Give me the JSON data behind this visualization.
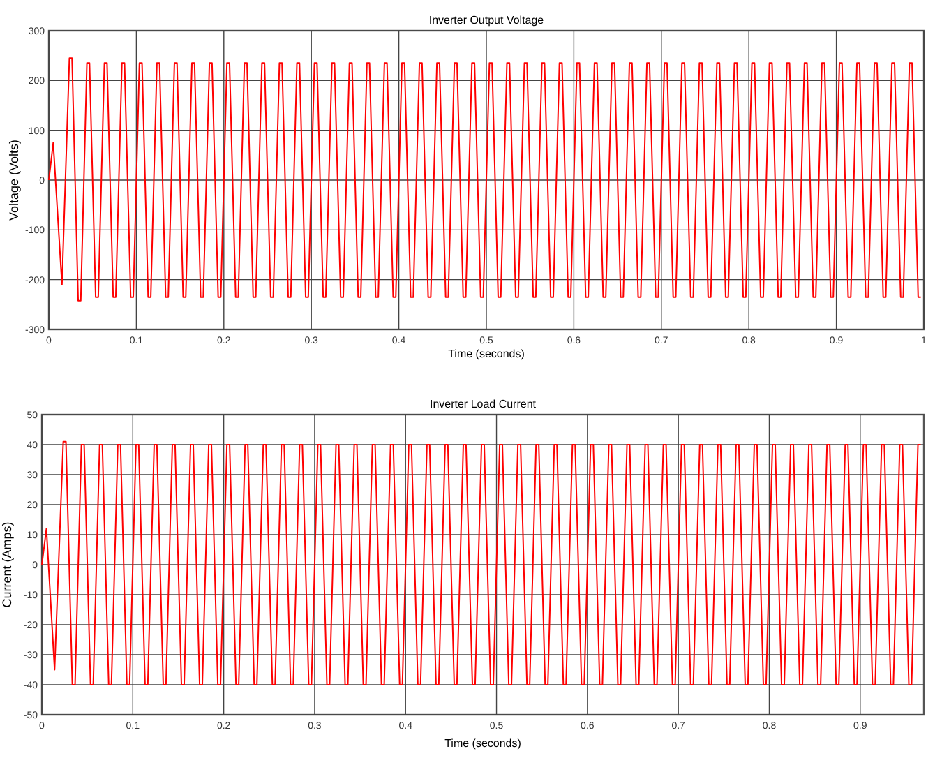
{
  "chart_data": [
    {
      "type": "line",
      "title": "Inverter Output Voltage",
      "xlabel": "Time (seconds)",
      "ylabel": "Voltage (Volts)",
      "xlim": [
        0,
        1
      ],
      "ylim": [
        -300,
        300
      ],
      "xticks": [
        0,
        0.1,
        0.2,
        0.3,
        0.4,
        0.5,
        0.6,
        0.7,
        0.8,
        0.9,
        1
      ],
      "yticks": [
        -300,
        -200,
        -100,
        0,
        100,
        200,
        300
      ],
      "grid": true,
      "x": [
        0,
        0.005,
        0.015,
        0.0235,
        0.0265,
        0.0335,
        0.0365,
        0.0435,
        0.0465,
        0.0535,
        0.0565,
        0.0635,
        0.0665,
        0.0735,
        0.0765,
        0.0835,
        0.0865,
        0.0935,
        0.0965,
        0.1035,
        0.1065,
        0.1135,
        0.1165,
        0.1235,
        0.1265,
        0.1335,
        0.1365,
        0.1435,
        0.1465,
        0.1535,
        0.1565,
        0.1635,
        0.1665,
        0.1735,
        0.1765,
        0.1835,
        0.1865,
        0.1935,
        0.1965,
        0.2035,
        0.2065,
        0.2135,
        0.2165,
        0.2235,
        0.2265,
        0.2335,
        0.2365,
        0.2435,
        0.2465,
        0.2535,
        0.2565,
        0.2635,
        0.2665,
        0.2735,
        0.2765,
        0.2835,
        0.2865,
        0.2935,
        0.2965,
        0.3035,
        0.3065,
        0.3135,
        0.3165,
        0.3235,
        0.3265,
        0.3335,
        0.3365,
        0.3435,
        0.3465,
        0.3535,
        0.3565,
        0.3635,
        0.3665,
        0.3735,
        0.3765,
        0.3835,
        0.3865,
        0.3935,
        0.3965,
        0.4035,
        0.4065,
        0.4135,
        0.4165,
        0.4235,
        0.4265,
        0.4335,
        0.4365,
        0.4435,
        0.4465,
        0.4535,
        0.4565,
        0.4635,
        0.4665,
        0.4735,
        0.4765,
        0.4835,
        0.4865,
        0.4935,
        0.4965,
        0.5035,
        0.5065,
        0.5135,
        0.5165,
        0.5235,
        0.5265,
        0.5335,
        0.5365,
        0.5435,
        0.5465,
        0.5535,
        0.5565,
        0.5635,
        0.5665,
        0.5735,
        0.5765,
        0.5835,
        0.5865,
        0.5935,
        0.5965,
        0.6035,
        0.6065,
        0.6135,
        0.6165,
        0.6235,
        0.6265,
        0.6335,
        0.6365,
        0.6435,
        0.6465,
        0.6535,
        0.6565,
        0.6635,
        0.6665,
        0.6735,
        0.6765,
        0.6835,
        0.6865,
        0.6935,
        0.6965,
        0.7035,
        0.7065,
        0.7135,
        0.7165,
        0.7235,
        0.7265,
        0.7335,
        0.7365,
        0.7435,
        0.7465,
        0.7535,
        0.7565,
        0.7635,
        0.7665,
        0.7735,
        0.7765,
        0.7835,
        0.7865,
        0.7935,
        0.7965,
        0.8035,
        0.8065,
        0.8135,
        0.8165,
        0.8235,
        0.8265,
        0.8335,
        0.8365,
        0.8435,
        0.8465,
        0.8535,
        0.8565,
        0.8635,
        0.8665,
        0.8735,
        0.8765,
        0.8835,
        0.8865,
        0.8935,
        0.8965,
        0.9035,
        0.9065,
        0.9135,
        0.9165,
        0.9235,
        0.9265,
        0.9335,
        0.9365,
        0.9435,
        0.9465,
        0.9535,
        0.9565,
        0.9635,
        0.9665,
        0.9735,
        0.9765,
        0.9835,
        0.9865,
        0.9935,
        0.9965
      ],
      "series": [
        {
          "color": "#ff0000",
          "values": [
            0,
            75,
            -210,
            245,
            245,
            -242,
            -242,
            235,
            235,
            -235,
            -235,
            235,
            235,
            -235,
            -235,
            235,
            235,
            -235,
            -235,
            235,
            235,
            -235,
            -235,
            235,
            235,
            -235,
            -235,
            235,
            235,
            -235,
            -235,
            235,
            235,
            -235,
            -235,
            235,
            235,
            -235,
            -235,
            235,
            235,
            -235,
            -235,
            235,
            235,
            -235,
            -235,
            235,
            235,
            -235,
            -235,
            235,
            235,
            -235,
            -235,
            235,
            235,
            -235,
            -235,
            235,
            235,
            -235,
            -235,
            235,
            235,
            -235,
            -235,
            235,
            235,
            -235,
            -235,
            235,
            235,
            -235,
            -235,
            235,
            235,
            -235,
            -235,
            235,
            235,
            -235,
            -235,
            235,
            235,
            -235,
            -235,
            235,
            235,
            -235,
            -235,
            235,
            235,
            -235,
            -235,
            235,
            235,
            -235,
            -235,
            235,
            235,
            -235,
            -235,
            235,
            235,
            -235,
            -235,
            235,
            235,
            -235,
            -235,
            235,
            235,
            -235,
            -235,
            235,
            235,
            -235,
            -235,
            235,
            235,
            -235,
            -235,
            235,
            235,
            -235,
            -235,
            235,
            235,
            -235,
            -235,
            235,
            235,
            -235,
            -235,
            235,
            235,
            -235,
            -235,
            235,
            235,
            -235,
            -235,
            235,
            235,
            -235,
            -235,
            235,
            235,
            -235,
            -235,
            235,
            235,
            -235,
            -235,
            235,
            235,
            -235,
            -235,
            235,
            235,
            -235,
            -235,
            235,
            235,
            -235,
            -235,
            235,
            235,
            -235,
            -235,
            235,
            235,
            -235,
            -235,
            235,
            235,
            -235,
            -235,
            235,
            235,
            -235,
            -235,
            235,
            235,
            -235,
            -235,
            235,
            235,
            -235,
            -235,
            235,
            235,
            -235,
            -235,
            235,
            235,
            -235,
            -235
          ]
        }
      ]
    },
    {
      "type": "line",
      "title": "Inverter Load Current",
      "xlabel": "Time (seconds)",
      "ylabel": "Current (Amps)",
      "xlim": [
        0,
        0.97
      ],
      "ylim": [
        -50,
        50
      ],
      "xticks": [
        0,
        0.1,
        0.2,
        0.3,
        0.4,
        0.5,
        0.6,
        0.7,
        0.8,
        0.9
      ],
      "yticks": [
        -50,
        -40,
        -30,
        -20,
        -10,
        0,
        10,
        20,
        30,
        40,
        50
      ],
      "grid": true,
      "x": [
        0,
        0.005,
        0.014,
        0.0235,
        0.0265,
        0.0335,
        0.0365,
        0.0435,
        0.0465,
        0.0535,
        0.0565,
        0.0635,
        0.0665,
        0.0735,
        0.0765,
        0.0835,
        0.0865,
        0.0935,
        0.0965,
        0.1035,
        0.1065,
        0.1135,
        0.1165,
        0.1235,
        0.1265,
        0.1335,
        0.1365,
        0.1435,
        0.1465,
        0.1535,
        0.1565,
        0.1635,
        0.1665,
        0.1735,
        0.1765,
        0.1835,
        0.1865,
        0.1935,
        0.1965,
        0.2035,
        0.2065,
        0.2135,
        0.2165,
        0.2235,
        0.2265,
        0.2335,
        0.2365,
        0.2435,
        0.2465,
        0.2535,
        0.2565,
        0.2635,
        0.2665,
        0.2735,
        0.2765,
        0.2835,
        0.2865,
        0.2935,
        0.2965,
        0.3035,
        0.3065,
        0.3135,
        0.3165,
        0.3235,
        0.3265,
        0.3335,
        0.3365,
        0.3435,
        0.3465,
        0.3535,
        0.3565,
        0.3635,
        0.3665,
        0.3735,
        0.3765,
        0.3835,
        0.3865,
        0.3935,
        0.3965,
        0.4035,
        0.4065,
        0.4135,
        0.4165,
        0.4235,
        0.4265,
        0.4335,
        0.4365,
        0.4435,
        0.4465,
        0.4535,
        0.4565,
        0.4635,
        0.4665,
        0.4735,
        0.4765,
        0.4835,
        0.4865,
        0.4935,
        0.4965,
        0.5035,
        0.5065,
        0.5135,
        0.5165,
        0.5235,
        0.5265,
        0.5335,
        0.5365,
        0.5435,
        0.5465,
        0.5535,
        0.5565,
        0.5635,
        0.5665,
        0.5735,
        0.5765,
        0.5835,
        0.5865,
        0.5935,
        0.5965,
        0.6035,
        0.6065,
        0.6135,
        0.6165,
        0.6235,
        0.6265,
        0.6335,
        0.6365,
        0.6435,
        0.6465,
        0.6535,
        0.6565,
        0.6635,
        0.6665,
        0.6735,
        0.6765,
        0.6835,
        0.6865,
        0.6935,
        0.6965,
        0.7035,
        0.7065,
        0.7135,
        0.7165,
        0.7235,
        0.7265,
        0.7335,
        0.7365,
        0.7435,
        0.7465,
        0.7535,
        0.7565,
        0.7635,
        0.7665,
        0.7735,
        0.7765,
        0.7835,
        0.7865,
        0.7935,
        0.7965,
        0.8035,
        0.8065,
        0.8135,
        0.8165,
        0.8235,
        0.8265,
        0.8335,
        0.8365,
        0.8435,
        0.8465,
        0.8535,
        0.8565,
        0.8635,
        0.8665,
        0.8735,
        0.8765,
        0.8835,
        0.8865,
        0.8935,
        0.8965,
        0.9035,
        0.9065,
        0.9135,
        0.9165,
        0.9235,
        0.9265,
        0.9335,
        0.9365,
        0.9435,
        0.9465,
        0.9535,
        0.9565,
        0.9635,
        0.9665
      ],
      "series": [
        {
          "color": "#ff0000",
          "values": [
            0,
            12,
            -35,
            41,
            41,
            -40,
            -40,
            40,
            40,
            -40,
            -40,
            40,
            40,
            -40,
            -40,
            40,
            40,
            -40,
            -40,
            40,
            40,
            -40,
            -40,
            40,
            40,
            -40,
            -40,
            40,
            40,
            -40,
            -40,
            40,
            40,
            -40,
            -40,
            40,
            40,
            -40,
            -40,
            40,
            40,
            -40,
            -40,
            40,
            40,
            -40,
            -40,
            40,
            40,
            -40,
            -40,
            40,
            40,
            -40,
            -40,
            40,
            40,
            -40,
            -40,
            40,
            40,
            -40,
            -40,
            40,
            40,
            -40,
            -40,
            40,
            40,
            -40,
            -40,
            40,
            40,
            -40,
            -40,
            40,
            40,
            -40,
            -40,
            40,
            40,
            -40,
            -40,
            40,
            40,
            -40,
            -40,
            40,
            40,
            -40,
            -40,
            40,
            40,
            -40,
            -40,
            40,
            40,
            -40,
            -40,
            40,
            40,
            -40,
            -40,
            40,
            40,
            -40,
            -40,
            40,
            40,
            -40,
            -40,
            40,
            40,
            -40,
            -40,
            40,
            40,
            -40,
            -40,
            40,
            40,
            -40,
            -40,
            40,
            40,
            -40,
            -40,
            40,
            40,
            -40,
            -40,
            40,
            40,
            -40,
            -40,
            40,
            40,
            -40,
            -40,
            40,
            40,
            -40,
            -40,
            40,
            40,
            -40,
            -40,
            40,
            40,
            -40,
            -40,
            40,
            40,
            -40,
            -40,
            40,
            40,
            -40,
            -40,
            40,
            40,
            -40,
            -40,
            40,
            40,
            -40,
            -40,
            40,
            40,
            -40,
            -40,
            40,
            40,
            -40,
            -40,
            40,
            40,
            -40,
            -40,
            40,
            40,
            -40,
            -40,
            40,
            40,
            -40,
            -40,
            40,
            40,
            -40,
            -40,
            40,
            40
          ]
        }
      ]
    }
  ]
}
